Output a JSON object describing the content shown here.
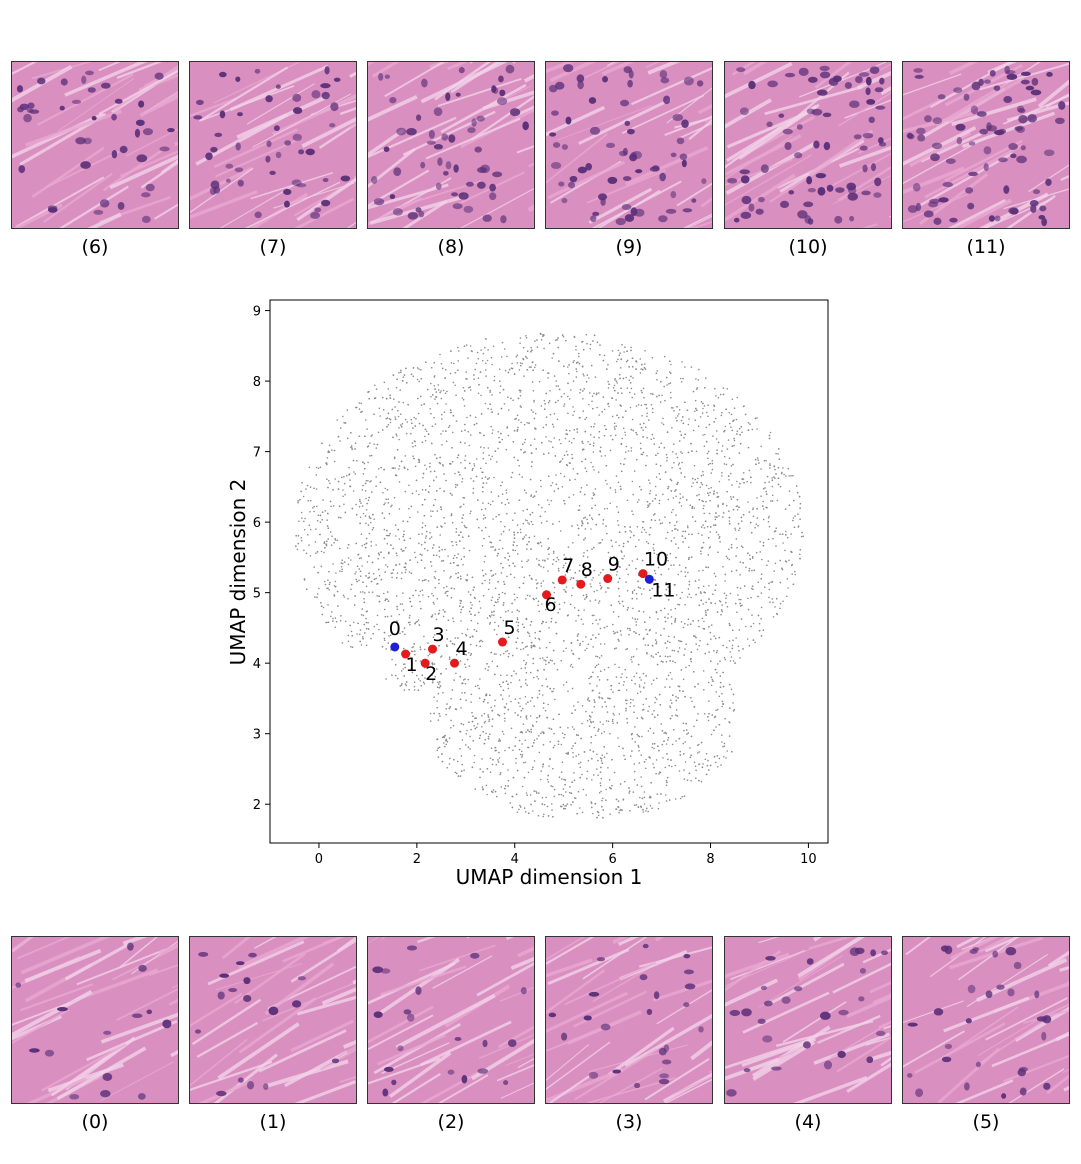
{
  "top_tiles": [
    {
      "caption": "(6)"
    },
    {
      "caption": "(7)"
    },
    {
      "caption": "(8)"
    },
    {
      "caption": "(9)"
    },
    {
      "caption": "(10)"
    },
    {
      "caption": "(11)"
    }
  ],
  "bottom_tiles": [
    {
      "caption": "(0)"
    },
    {
      "caption": "(1)"
    },
    {
      "caption": "(2)"
    },
    {
      "caption": "(3)"
    },
    {
      "caption": "(4)"
    },
    {
      "caption": "(5)"
    }
  ],
  "colors": {
    "tissue_base": "#d98fc0",
    "tissue_fiber": "#e8a9d2",
    "nucleus": "#5b2f78",
    "background_points": "#8c8c8c",
    "path_point": "#e41a1c",
    "endpoint_point": "#1f1fd6"
  },
  "chart_data": {
    "type": "scatter",
    "xlabel": "UMAP dimension 1",
    "ylabel": "UMAP dimension 2",
    "xlim": [
      -1,
      10.4
    ],
    "ylim": [
      1.45,
      9.15
    ],
    "xticks": [
      0,
      2,
      4,
      6,
      8,
      10
    ],
    "yticks": [
      2,
      3,
      4,
      5,
      6,
      7,
      8,
      9
    ],
    "grid": false,
    "background_cloud": "approx. 6000 gray points forming a blob spanning x -0.5 to 9.9, y 1.8 to 8.8",
    "series": [
      {
        "points": [
          {
            "label": "0",
            "x": 1.55,
            "y": 4.23,
            "color": "blue"
          },
          {
            "label": "1",
            "x": 1.77,
            "y": 4.13,
            "color": "red"
          },
          {
            "label": "2",
            "x": 2.17,
            "y": 4.0,
            "color": "red"
          },
          {
            "label": "3",
            "x": 2.32,
            "y": 4.2,
            "color": "red"
          },
          {
            "label": "4",
            "x": 2.77,
            "y": 4.0,
            "color": "red"
          },
          {
            "label": "5",
            "x": 3.75,
            "y": 4.3,
            "color": "red"
          },
          {
            "label": "6",
            "x": 4.65,
            "y": 4.97,
            "color": "red"
          },
          {
            "label": "7",
            "x": 4.97,
            "y": 5.18,
            "color": "red"
          },
          {
            "label": "8",
            "x": 5.35,
            "y": 5.12,
            "color": "red"
          },
          {
            "label": "9",
            "x": 5.9,
            "y": 5.2,
            "color": "red"
          },
          {
            "label": "10",
            "x": 6.62,
            "y": 5.27,
            "color": "red"
          },
          {
            "label": "11",
            "x": 6.75,
            "y": 5.19,
            "color": "blue"
          }
        ]
      }
    ]
  }
}
